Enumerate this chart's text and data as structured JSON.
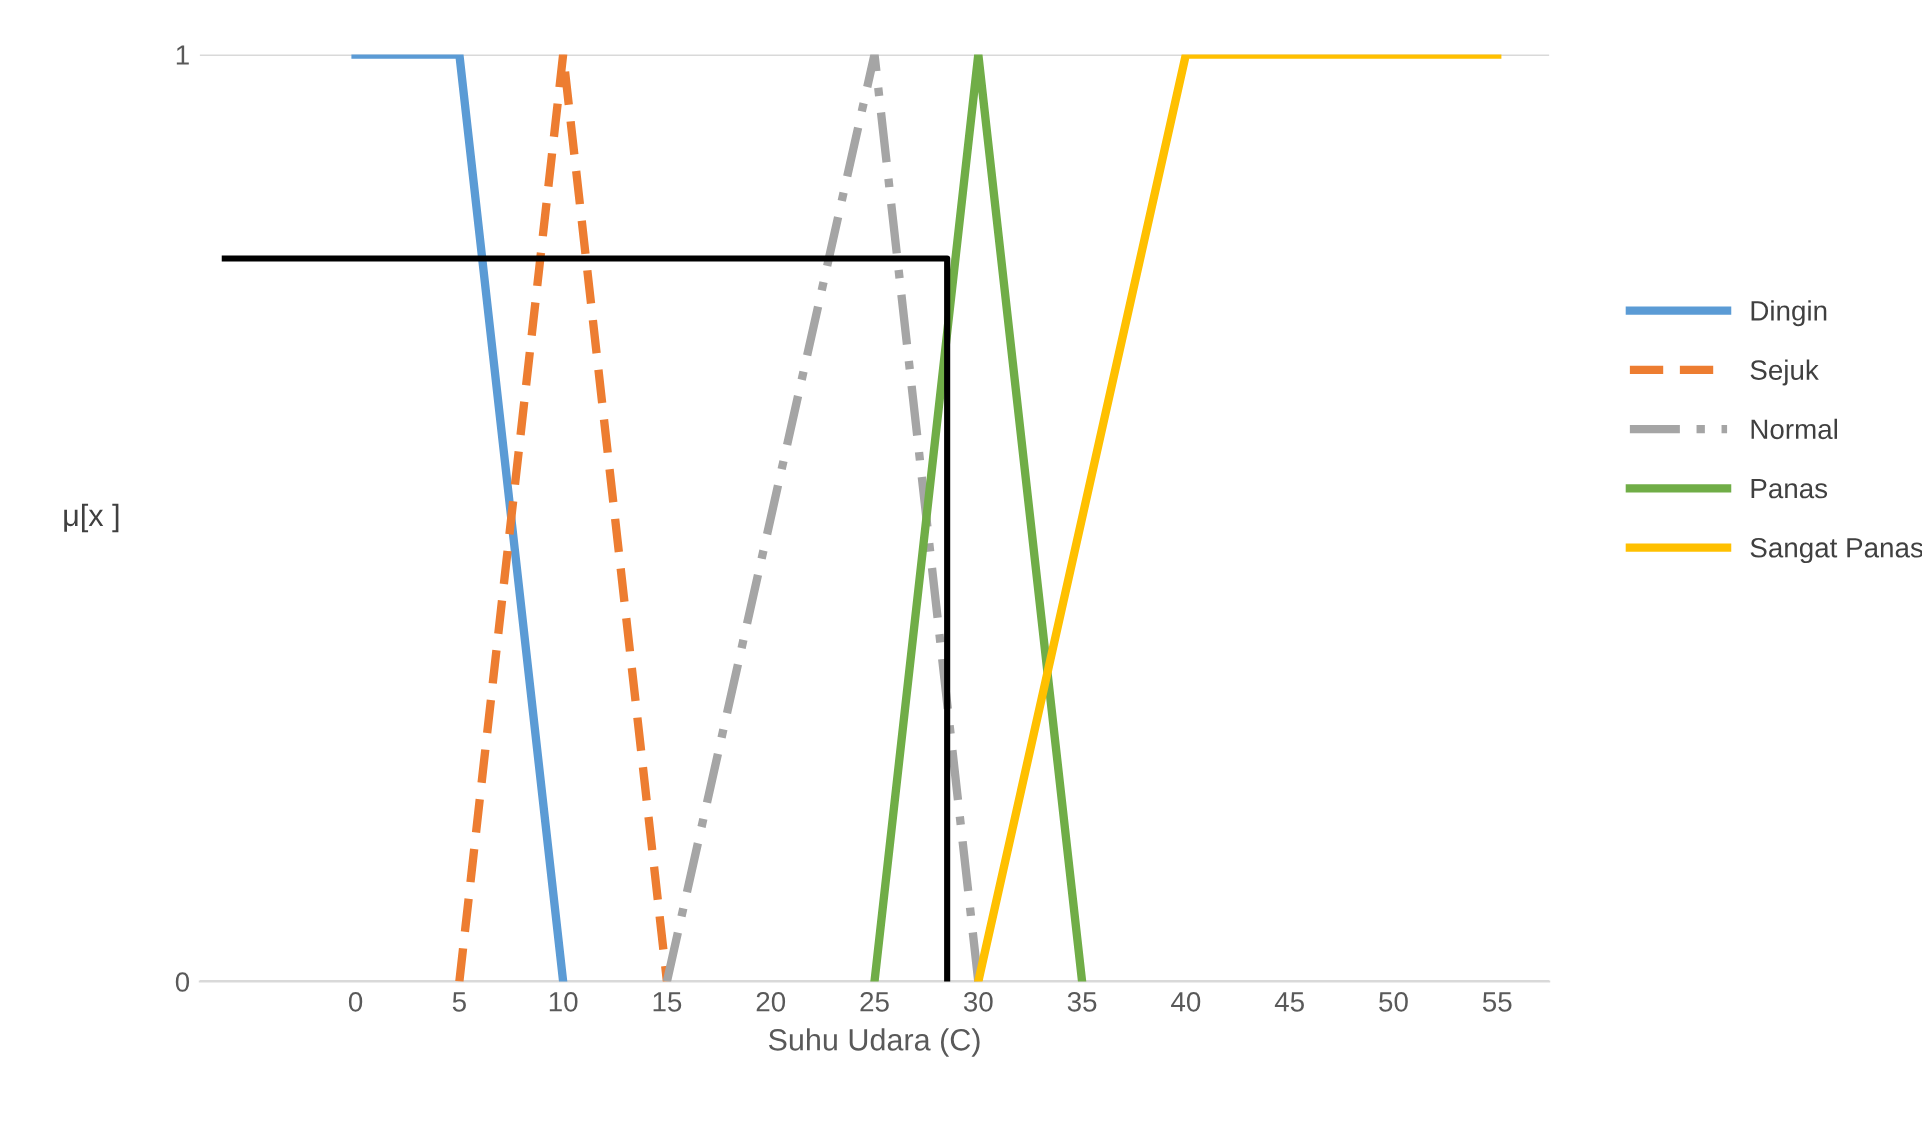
{
  "chart_data": {
    "type": "line",
    "xlabel": "Suhu Udara (C)",
    "ylabel": "μ[x ]",
    "xlim": [
      -7.5,
      57.5
    ],
    "xticks": [
      0,
      5,
      10,
      15,
      20,
      25,
      30,
      35,
      40,
      45,
      50,
      55
    ],
    "ylim": [
      0,
      1
    ],
    "yticks": [
      0,
      1
    ],
    "grid": "y",
    "legend": "right",
    "marker": "none",
    "series": [
      {
        "name": "Dingin",
        "color": "#5b9bd5",
        "line_style": "solid",
        "x": [
          0,
          5,
          10
        ],
        "values": [
          1,
          1,
          0
        ]
      },
      {
        "name": "Sejuk",
        "color": "#ed7d31",
        "line_style": "dashed",
        "x": [
          5,
          10,
          15
        ],
        "values": [
          0,
          1,
          0
        ]
      },
      {
        "name": "Normal",
        "color": "#a5a5a5",
        "line_style": "dashdot",
        "x": [
          15,
          25,
          30
        ],
        "values": [
          0,
          1,
          0
        ]
      },
      {
        "name": "Panas",
        "color": "#70ad47",
        "line_style": "solid",
        "x": [
          25,
          30,
          35
        ],
        "values": [
          0,
          1,
          0
        ]
      },
      {
        "name": "Sangat Panas",
        "color": "#ffc000",
        "line_style": "solid",
        "x": [
          30,
          40,
          55
        ],
        "values": [
          0,
          1,
          1
        ]
      },
      {
        "color": "#000000",
        "line_style": "solid",
        "x": [
          -6.3,
          28.5,
          28.5
        ],
        "values": [
          0.78,
          0.78,
          0
        ]
      }
    ]
  }
}
